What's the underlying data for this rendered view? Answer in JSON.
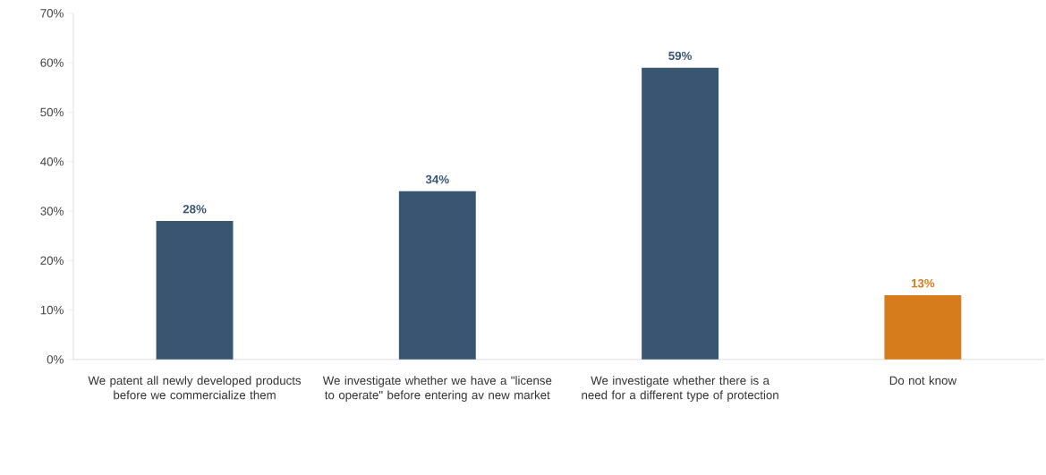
{
  "chart_data": {
    "type": "bar",
    "categories": [
      "We patent all newly developed products before we commercialize them",
      "We investigate whether we have a \"license to operate\" before entering av new market",
      "We investigate whether there is a need for a different type of protection",
      "Do not know"
    ],
    "values": [
      28,
      34,
      59,
      13
    ],
    "colors": [
      "#3a5572",
      "#3a5572",
      "#3a5572",
      "#d77c1c"
    ],
    "value_labels": [
      "28%",
      "34%",
      "59%",
      "13%"
    ],
    "ylim": [
      0,
      70
    ],
    "yticks": [
      {
        "value": 0,
        "label": "0%"
      },
      {
        "value": 10,
        "label": "10%"
      },
      {
        "value": 20,
        "label": "20%"
      },
      {
        "value": 30,
        "label": "30%"
      },
      {
        "value": 40,
        "label": "40%"
      },
      {
        "value": 50,
        "label": "50%"
      },
      {
        "value": 60,
        "label": "60%"
      },
      {
        "value": 70,
        "label": "70%"
      }
    ],
    "grid": false
  }
}
